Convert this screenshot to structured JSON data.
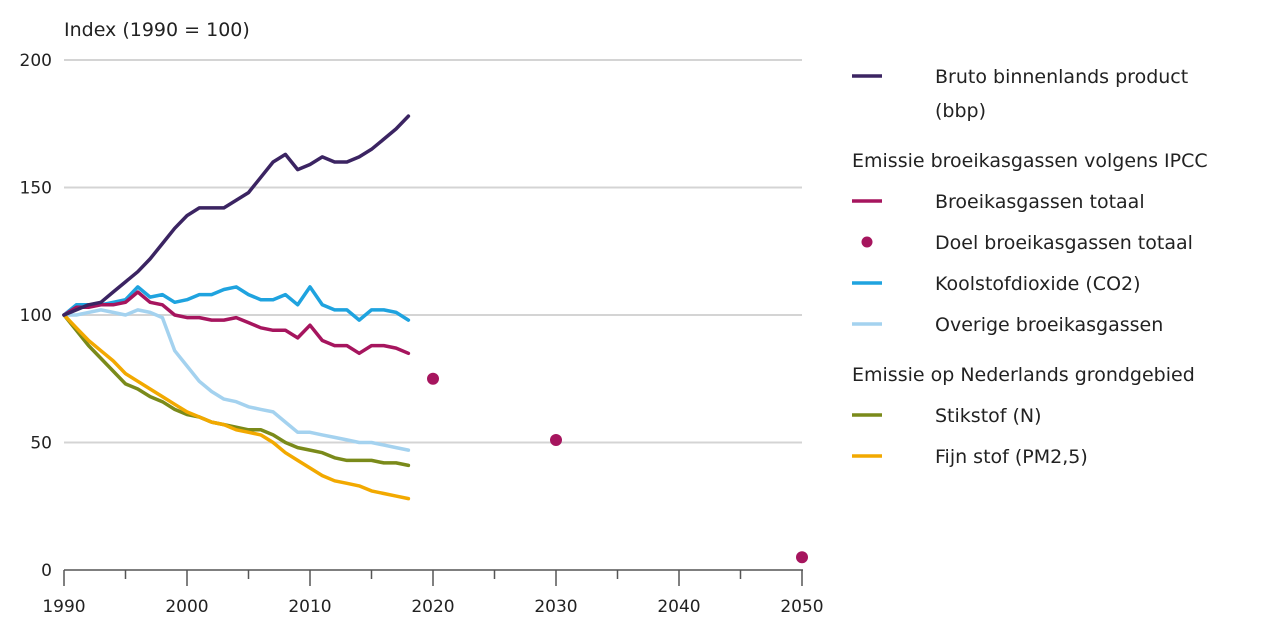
{
  "chart_data": {
    "type": "line",
    "ylabel": "Index (1990 = 100)",
    "xlim": [
      1990,
      2050
    ],
    "ylim": [
      0,
      200
    ],
    "x_ticks": [
      1990,
      2000,
      2010,
      2020,
      2030,
      2040,
      2050
    ],
    "y_ticks": [
      0,
      50,
      100,
      150,
      200
    ],
    "grid": "horizontal",
    "legend_position": "right",
    "x": [
      1990,
      1991,
      1992,
      1993,
      1994,
      1995,
      1996,
      1997,
      1998,
      1999,
      2000,
      2001,
      2002,
      2003,
      2004,
      2005,
      2006,
      2007,
      2008,
      2009,
      2010,
      2011,
      2012,
      2013,
      2014,
      2015,
      2016,
      2017,
      2018
    ],
    "series": [
      {
        "name": "Bruto binnenlands product (bbp)",
        "color": "#3b2462",
        "marker": "line",
        "values": [
          100,
          102,
          104,
          105,
          109,
          113,
          117,
          122,
          128,
          134,
          139,
          142,
          142,
          142,
          145,
          148,
          154,
          160,
          163,
          157,
          159,
          162,
          160,
          160,
          162,
          165,
          169,
          173,
          178
        ]
      },
      {
        "name": "Broeikasgassen totaal",
        "color": "#a6155e",
        "marker": "line",
        "values": [
          100,
          103,
          103,
          104,
          104,
          105,
          109,
          105,
          104,
          100,
          99,
          99,
          98,
          98,
          99,
          97,
          95,
          94,
          94,
          91,
          96,
          90,
          88,
          88,
          85,
          88,
          88,
          87,
          85
        ]
      },
      {
        "name": "Doel broeikasgassen totaal",
        "color": "#a6155e",
        "marker": "dot",
        "points": [
          [
            2020,
            75
          ],
          [
            2030,
            51
          ],
          [
            2050,
            5
          ]
        ]
      },
      {
        "name": "Koolstofdioxide (CO2)",
        "color": "#1fa3df",
        "marker": "line",
        "values": [
          100,
          104,
          104,
          104,
          105,
          106,
          111,
          107,
          108,
          105,
          106,
          108,
          108,
          110,
          111,
          108,
          106,
          106,
          108,
          104,
          111,
          104,
          102,
          102,
          98,
          102,
          102,
          101,
          98
        ]
      },
      {
        "name": "Overige broeikasgassen",
        "color": "#a4d2ef",
        "marker": "line",
        "values": [
          100,
          100,
          101,
          102,
          101,
          100,
          102,
          101,
          99,
          86,
          80,
          74,
          70,
          67,
          66,
          64,
          63,
          62,
          58,
          54,
          54,
          53,
          52,
          51,
          50,
          50,
          49,
          48,
          47
        ]
      },
      {
        "name": "Stikstof (N)",
        "color": "#7a8a1a",
        "marker": "line",
        "values": [
          100,
          94,
          88,
          83,
          78,
          73,
          71,
          68,
          66,
          63,
          61,
          60,
          58,
          57,
          56,
          55,
          55,
          53,
          50,
          48,
          47,
          46,
          44,
          43,
          43,
          43,
          42,
          42,
          41
        ]
      },
      {
        "name": "Fijn stof (PM2,5)",
        "color": "#f2a900",
        "marker": "line",
        "values": [
          100,
          95,
          90,
          86,
          82,
          77,
          74,
          71,
          68,
          65,
          62,
          60,
          58,
          57,
          55,
          54,
          53,
          50,
          46,
          43,
          40,
          37,
          35,
          34,
          33,
          31,
          30,
          29,
          28
        ]
      }
    ]
  },
  "legend": {
    "groups": [
      {
        "heading": "",
        "items": [
          {
            "label_lines": [
              "Bruto binnenlands product",
              "(bbp)"
            ],
            "color": "#3b2462",
            "marker": "line"
          }
        ]
      },
      {
        "heading": "Emissie broeikasgassen volgens IPCC",
        "items": [
          {
            "label_lines": [
              "Broeikasgassen totaal"
            ],
            "color": "#a6155e",
            "marker": "line"
          },
          {
            "label_lines": [
              "Doel broeikasgassen totaal"
            ],
            "color": "#a6155e",
            "marker": "dot"
          },
          {
            "label_lines": [
              "Koolstofdioxide (CO2)"
            ],
            "color": "#1fa3df",
            "marker": "line"
          },
          {
            "label_lines": [
              "Overige broeikasgassen"
            ],
            "color": "#a4d2ef",
            "marker": "line"
          }
        ]
      },
      {
        "heading": "Emissie op Nederlands grondgebied",
        "items": [
          {
            "label_lines": [
              "Stikstof (N)"
            ],
            "color": "#7a8a1a",
            "marker": "line"
          },
          {
            "label_lines": [
              "Fijn stof (PM2,5)"
            ],
            "color": "#f2a900",
            "marker": "line"
          }
        ]
      }
    ]
  }
}
